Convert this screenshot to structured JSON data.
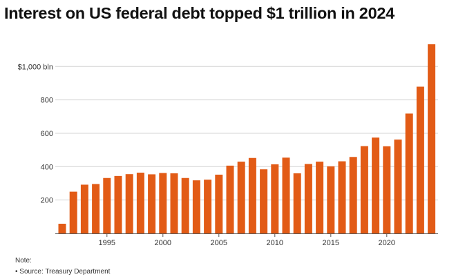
{
  "title": "Interest on US federal debt topped $1 trillion in 2024",
  "note_label": "Note:",
  "source": "• Source: Treasury Department",
  "colors": {
    "bar": "#e25b16",
    "grid": "#d4d4d4",
    "axis": "#555555"
  },
  "chart_data": {
    "type": "bar",
    "title": "Interest on US federal debt topped $1 trillion in 2024",
    "xlabel": "",
    "ylabel": "",
    "categories": [
      1991,
      1992,
      1993,
      1994,
      1995,
      1996,
      1997,
      1998,
      1999,
      2000,
      2001,
      2002,
      2003,
      2004,
      2005,
      2006,
      2007,
      2008,
      2009,
      2010,
      2011,
      2012,
      2013,
      2014,
      2015,
      2016,
      2017,
      2018,
      2019,
      2020,
      2021,
      2022,
      2023,
      2024
    ],
    "values": [
      58,
      250,
      292,
      296,
      332,
      344,
      355,
      364,
      354,
      362,
      360,
      332,
      318,
      322,
      352,
      406,
      430,
      452,
      384,
      414,
      454,
      360,
      416,
      430,
      402,
      432,
      458,
      523,
      574,
      522,
      562,
      718,
      879,
      1133
    ],
    "ylim": [
      0,
      1150
    ],
    "yticks": [
      200,
      400,
      600,
      800,
      1000
    ],
    "ytick_labels": [
      "200",
      "400",
      "600",
      "800",
      "$1,000 bln"
    ],
    "xticks": [
      1995,
      2000,
      2005,
      2010,
      2015,
      2020
    ],
    "xtick_labels": [
      "1995",
      "2000",
      "2005",
      "2010",
      "2015",
      "2020"
    ],
    "grid": true
  }
}
